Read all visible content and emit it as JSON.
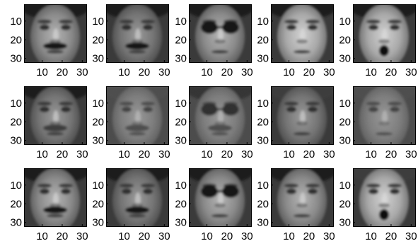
{
  "chart_data": {
    "type": "heatmap",
    "layout": {
      "rows": 3,
      "cols": 5
    },
    "colormap": "gray",
    "ylim": [
      1,
      32
    ],
    "xlim": [
      1,
      32
    ],
    "tick_values": [
      10,
      20,
      30
    ],
    "xtick_labels": [
      "10",
      "20",
      "30"
    ],
    "ytick_labels": [
      "10",
      "20",
      "30"
    ],
    "subplots": [
      {
        "row": 0,
        "col": 0,
        "face": {
          "mustache": "dark",
          "glasses": false,
          "mouth_open": false,
          "hair": "dark",
          "shade": "medium"
        }
      },
      {
        "row": 0,
        "col": 1,
        "face": {
          "mustache": "dark",
          "glasses": false,
          "mouth_open": false,
          "hair": "dark",
          "shade": "dim"
        }
      },
      {
        "row": 0,
        "col": 2,
        "face": {
          "mustache": "none",
          "glasses": true,
          "mouth_open": false,
          "hair": "dark",
          "shade": "medium"
        }
      },
      {
        "row": 0,
        "col": 3,
        "face": {
          "mustache": "none",
          "glasses": false,
          "mouth_open": false,
          "hair": "dark",
          "shade": "bright"
        }
      },
      {
        "row": 0,
        "col": 4,
        "face": {
          "mustache": "none",
          "glasses": false,
          "mouth_open": true,
          "hair": "dark",
          "shade": "bright"
        }
      },
      {
        "row": 1,
        "col": 0,
        "face": {
          "mustache": "faint",
          "glasses": false,
          "mouth_open": false,
          "hair": "dark",
          "shade": "dim"
        }
      },
      {
        "row": 1,
        "col": 1,
        "face": {
          "mustache": "faint",
          "glasses": false,
          "mouth_open": false,
          "hair": "medium",
          "shade": "noisy"
        }
      },
      {
        "row": 1,
        "col": 2,
        "face": {
          "mustache": "faint",
          "glasses": true,
          "mouth_open": false,
          "hair": "dark",
          "shade": "noisy"
        }
      },
      {
        "row": 1,
        "col": 3,
        "face": {
          "mustache": "none",
          "glasses": false,
          "mouth_open": false,
          "hair": "medium",
          "shade": "dim"
        }
      },
      {
        "row": 1,
        "col": 4,
        "face": {
          "mustache": "none",
          "glasses": false,
          "mouth_open": false,
          "hair": "medium",
          "shade": "noisy"
        }
      },
      {
        "row": 2,
        "col": 0,
        "face": {
          "mustache": "dark",
          "glasses": false,
          "mouth_open": false,
          "hair": "dark",
          "shade": "medium"
        }
      },
      {
        "row": 2,
        "col": 1,
        "face": {
          "mustache": "dark",
          "glasses": false,
          "mouth_open": false,
          "hair": "dark",
          "shade": "dim"
        }
      },
      {
        "row": 2,
        "col": 2,
        "face": {
          "mustache": "none",
          "glasses": true,
          "mouth_open": false,
          "hair": "dark",
          "shade": "medium"
        }
      },
      {
        "row": 2,
        "col": 3,
        "face": {
          "mustache": "none",
          "glasses": false,
          "mouth_open": false,
          "hair": "dark",
          "shade": "medium"
        }
      },
      {
        "row": 2,
        "col": 4,
        "face": {
          "mustache": "none",
          "glasses": false,
          "mouth_open": true,
          "hair": "medium",
          "shade": "bright"
        }
      }
    ]
  }
}
